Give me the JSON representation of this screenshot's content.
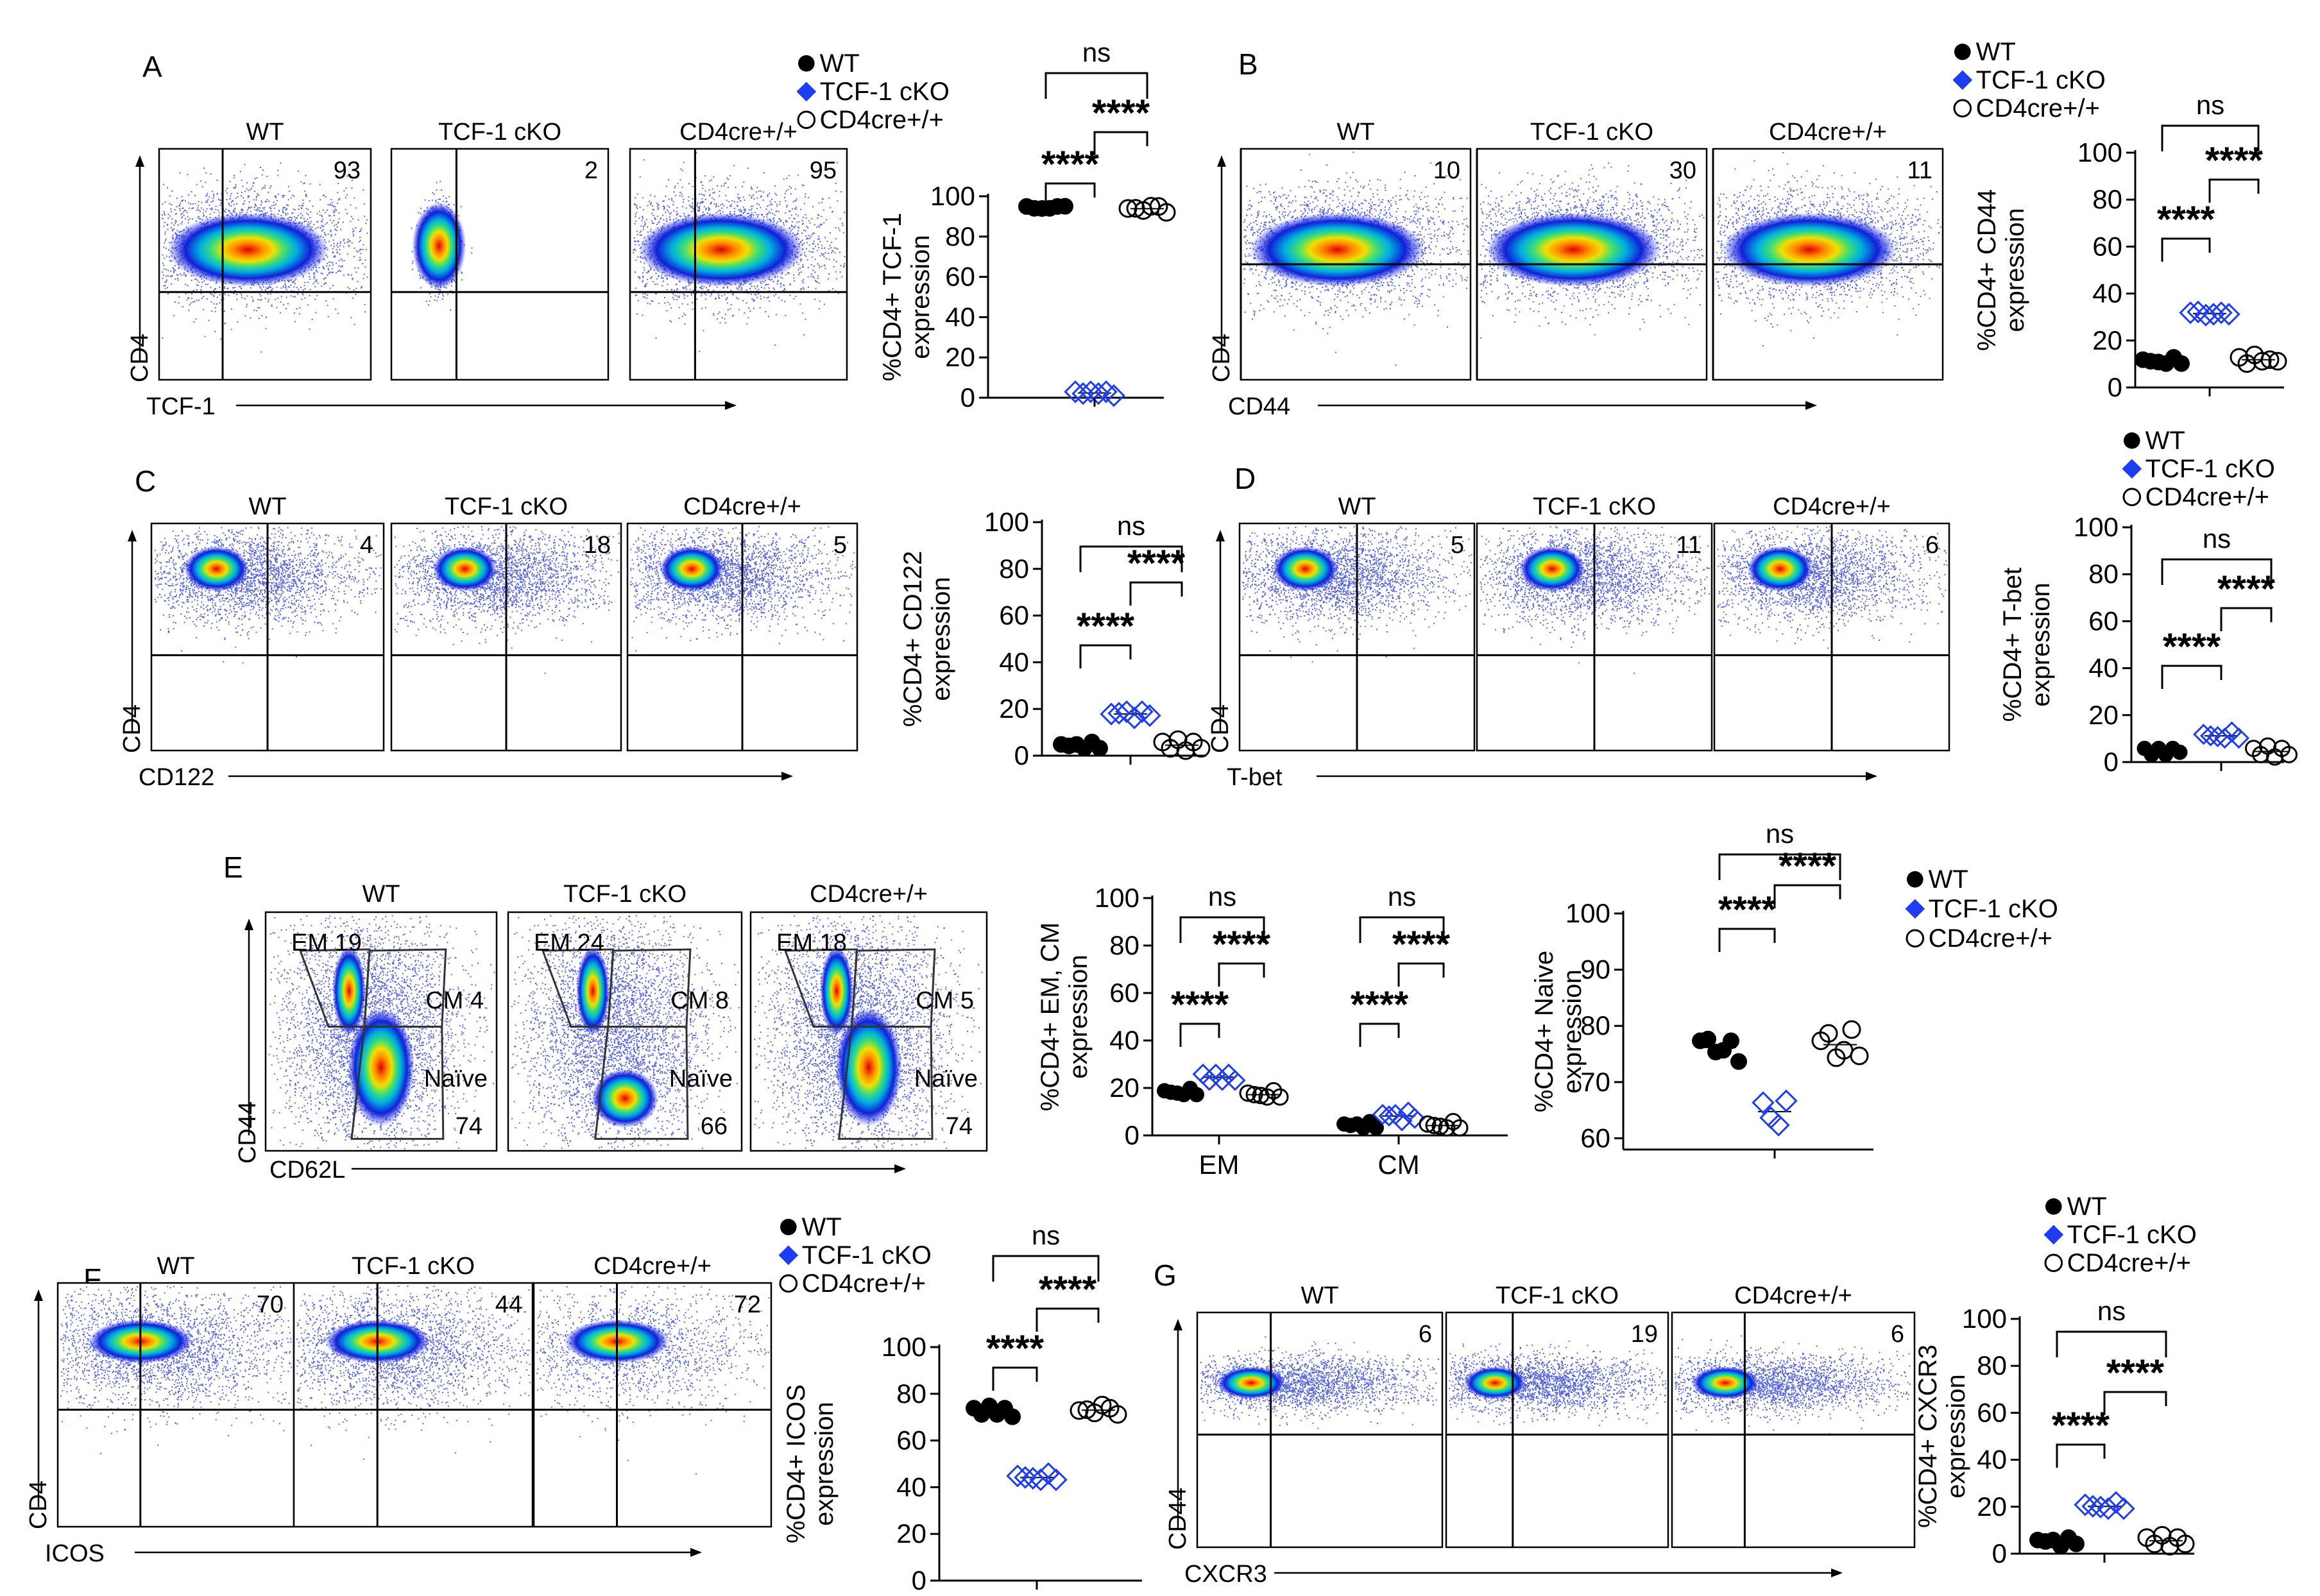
{
  "figure": {
    "legend": {
      "wt": "WT",
      "cko": "TCF-1 cKO",
      "cre": "CD4cre+/+"
    },
    "stars": "****",
    "ns": "ns",
    "groups": [
      "WT",
      "TCF-1 cKO",
      "CD4cre+/+"
    ]
  },
  "panels": {
    "A": {
      "letter": "A",
      "x_label": "TCF-1",
      "y_label": "CD4",
      "percents": [
        "93",
        "2",
        "95"
      ]
    },
    "B": {
      "letter": "B",
      "x_label": "CD44",
      "y_label": "CD4",
      "percents": [
        "10",
        "30",
        "11"
      ]
    },
    "C": {
      "letter": "C",
      "x_label": "CD122",
      "y_label": "CD4",
      "percents": [
        "4",
        "18",
        "5"
      ]
    },
    "D": {
      "letter": "D",
      "x_label": "T-bet",
      "y_label": "CD4",
      "percents": [
        "5",
        "11",
        "6"
      ]
    },
    "E": {
      "letter": "E",
      "x_label": "CD62L",
      "y_label": "CD44",
      "gates": [
        {
          "em": "EM 19",
          "cm": "CM 4",
          "naive": "Naïve",
          "naive_val": "74"
        },
        {
          "em": "EM 24",
          "cm": "CM 8",
          "naive": "Naïve",
          "naive_val": "66"
        },
        {
          "em": "EM 18",
          "cm": "CM 5",
          "naive": "Naïve",
          "naive_val": "74"
        }
      ]
    },
    "F": {
      "letter": "F",
      "x_label": "ICOS",
      "y_label": "CD4",
      "percents": [
        "70",
        "44",
        "72"
      ]
    },
    "G": {
      "letter": "G",
      "x_label": "CXCR3",
      "y_label": "CD44",
      "percents": [
        "6",
        "19",
        "6"
      ]
    }
  },
  "chart_data": [
    {
      "id": "A",
      "type": "scatter",
      "ylabel": [
        "%CD4+ TCF-1",
        "expression"
      ],
      "ylim": [
        0,
        100
      ],
      "yticks": [
        0,
        20,
        40,
        60,
        80,
        100
      ],
      "groups": [
        "WT",
        "TCF-1 cKO",
        "CD4cre+/+"
      ],
      "points": [
        [
          94,
          95,
          93,
          95,
          94,
          96
        ],
        [
          2,
          3,
          2,
          3,
          2,
          2
        ],
        [
          93,
          95,
          92,
          96,
          94,
          93
        ]
      ],
      "comparisons": [
        "****",
        "****",
        "ns"
      ]
    },
    {
      "id": "B",
      "type": "scatter",
      "ylabel": [
        "%CD4+ CD44",
        "expression"
      ],
      "ylim": [
        0,
        100
      ],
      "yticks": [
        0,
        20,
        40,
        60,
        80,
        100
      ],
      "groups": [
        "WT",
        "TCF-1 cKO",
        "CD4cre+/+"
      ],
      "points": [
        [
          11,
          12,
          10,
          11,
          12,
          11
        ],
        [
          31,
          33,
          30,
          32,
          31,
          32
        ],
        [
          12,
          11,
          13,
          12,
          11,
          12
        ]
      ],
      "comparisons": [
        "****",
        "****",
        "ns"
      ]
    },
    {
      "id": "C",
      "type": "scatter",
      "ylabel": [
        "%CD4+ CD122",
        "expression"
      ],
      "ylim": [
        0,
        100
      ],
      "yticks": [
        0,
        20,
        40,
        60,
        80,
        100
      ],
      "groups": [
        "WT",
        "TCF-1 cKO",
        "CD4cre+/+"
      ],
      "points": [
        [
          4,
          5,
          4,
          4,
          5,
          4
        ],
        [
          17,
          19,
          18,
          17,
          18,
          18
        ],
        [
          5,
          4,
          6,
          3,
          5,
          4
        ]
      ],
      "comparisons": [
        "****",
        "****",
        "ns"
      ]
    },
    {
      "id": "D",
      "type": "scatter",
      "ylabel": [
        "%CD4+ T-bet",
        "expression"
      ],
      "ylim": [
        0,
        100
      ],
      "yticks": [
        0,
        20,
        40,
        60,
        80,
        100
      ],
      "groups": [
        "WT",
        "TCF-1 cKO",
        "CD4cre+/+"
      ],
      "points": [
        [
          5,
          4,
          5,
          4,
          5,
          5
        ],
        [
          11,
          12,
          10,
          11,
          12,
          11
        ],
        [
          5,
          4,
          6,
          3,
          5,
          4
        ]
      ],
      "comparisons": [
        "****",
        "****",
        "ns"
      ]
    },
    {
      "id": "E1",
      "type": "scatter",
      "ylabel": [
        "%CD4+ EM, CM",
        "expression"
      ],
      "ylim": [
        0,
        100
      ],
      "yticks": [
        0,
        20,
        40,
        60,
        80,
        100
      ],
      "categories": [
        "EM",
        "CM"
      ],
      "groups": [
        "WT",
        "TCF-1 cKO",
        "CD4cre+/+"
      ],
      "points": [
        [
          [
            18,
            19,
            17,
            18,
            19,
            18
          ],
          [
            25,
            24,
            25,
            24,
            25,
            24
          ],
          [
            17,
            18,
            16,
            17,
            18,
            17
          ]
        ],
        [
          [
            4,
            5,
            4,
            4,
            5,
            4
          ],
          [
            8,
            9,
            8,
            7,
            9,
            8
          ],
          [
            4,
            5,
            3,
            4,
            5,
            4
          ]
        ]
      ],
      "comparisons": [
        "****",
        "****",
        "ns"
      ]
    },
    {
      "id": "E2",
      "type": "scatter",
      "ylabel": [
        "%CD4+ Naive",
        "expression"
      ],
      "ylim": [
        58,
        100
      ],
      "yticks": [
        60,
        70,
        80,
        90,
        100
      ],
      "groups": [
        "WT",
        "TCF-1 cKO",
        "CD4cre+/+"
      ],
      "points": [
        [
          77,
          78,
          75,
          76,
          77,
          74
        ],
        [
          66,
          64,
          62,
          67
        ],
        [
          77,
          79,
          74,
          76,
          79,
          75
        ]
      ],
      "comparisons": [
        "****",
        "****",
        "ns"
      ]
    },
    {
      "id": "F",
      "type": "scatter",
      "ylabel": [
        "%CD4+ ICOS",
        "expression"
      ],
      "ylim": [
        0,
        100
      ],
      "yticks": [
        0,
        20,
        40,
        60,
        80,
        100
      ],
      "groups": [
        "WT",
        "TCF-1 cKO",
        "CD4cre+/+"
      ],
      "points": [
        [
          73,
          72,
          74,
          72,
          73,
          71
        ],
        [
          44,
          45,
          43,
          44,
          45,
          44
        ],
        [
          72,
          74,
          71,
          76,
          73,
          72
        ]
      ],
      "comparisons": [
        "****",
        "****",
        "ns"
      ]
    },
    {
      "id": "G",
      "type": "scatter",
      "ylabel": [
        "%CD4+ CXCR3",
        "expression"
      ],
      "ylim": [
        0,
        100
      ],
      "yticks": [
        0,
        20,
        40,
        60,
        80,
        100
      ],
      "groups": [
        "WT",
        "TCF-1 cKO",
        "CD4cre+/+"
      ],
      "points": [
        [
          5,
          6,
          5,
          4,
          6,
          5
        ],
        [
          20,
          21,
          19,
          20,
          21,
          20
        ],
        [
          6,
          5,
          7,
          4,
          6,
          5
        ]
      ],
      "comparisons": [
        "****",
        "****",
        "ns"
      ]
    }
  ]
}
